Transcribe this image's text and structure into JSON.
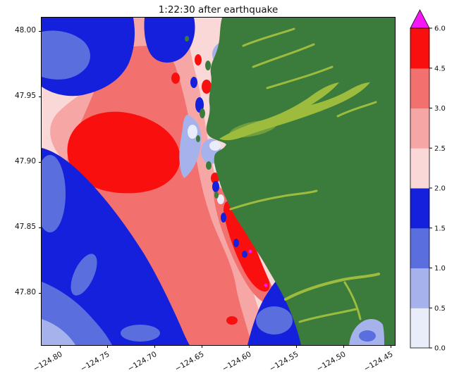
{
  "figure": {
    "title": "1:22:30 after earthquake"
  },
  "chart_data": {
    "type": "heatmap",
    "subtype": "filled-contour-map",
    "title": "1:22:30 after earthquake",
    "xlabel": "",
    "ylabel": "",
    "x_ticks": [
      -124.8,
      -124.75,
      -124.7,
      -124.65,
      -124.6,
      -124.55,
      -124.5,
      -124.45
    ],
    "x_tick_labels": [
      "−124.80",
      "−124.75",
      "−124.70",
      "−124.65",
      "−124.60",
      "−124.55",
      "−124.50",
      "−124.45"
    ],
    "y_ticks": [
      48.0,
      47.95,
      47.9,
      47.85,
      47.8
    ],
    "y_tick_labels": [
      "48.00",
      "47.95",
      "47.90",
      "47.85",
      "47.80"
    ],
    "xlim": [
      -124.82,
      -124.443
    ],
    "ylim": [
      47.758,
      48.012
    ],
    "grid": false,
    "colorbar": {
      "orientation": "vertical",
      "position": "right",
      "extend": "max",
      "spacing": "uniform",
      "levels": [
        0.0,
        0.5,
        1.0,
        1.5,
        2.0,
        2.5,
        3.0,
        4.5,
        6.0
      ],
      "tick_labels": [
        "0.0",
        "0.5",
        "1.0",
        "1.5",
        "2.0",
        "2.5",
        "3.0",
        "4.5",
        "6.0"
      ],
      "segment_colors": [
        "#e9ecf9",
        "#a6b2ec",
        "#5a6ede",
        "#1420dc",
        "#fbd8d8",
        "#f7a6a6",
        "#f2706e",
        "#fa0f0f"
      ],
      "over_color": "#f617f6"
    },
    "map_colors": {
      "land": "#3b7c3c",
      "land_light": "#9dbc3e",
      "land_mid": "#6f9e3e"
    }
  }
}
